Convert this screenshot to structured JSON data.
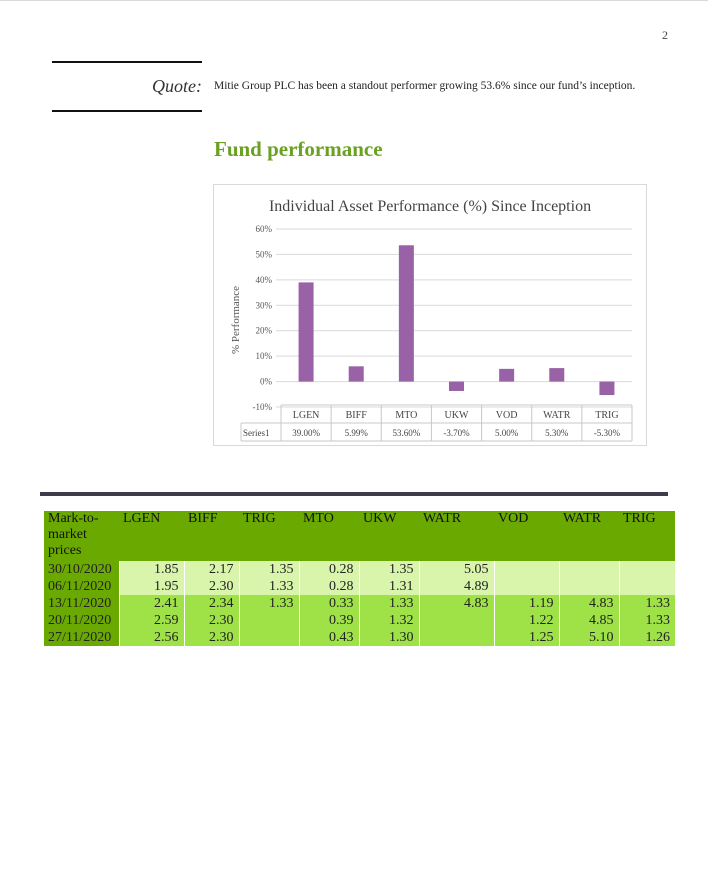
{
  "page_number": "2",
  "quote": {
    "label": "Quote:",
    "text": "Mitie Group PLC has been a standout performer growing 53.6% since our fund’s inception."
  },
  "section_title": "Fund performance",
  "chart_data": {
    "type": "bar",
    "title": "Individual Asset Performance (%) Since Inception",
    "ylabel": "% Performance",
    "xlabel": "",
    "categories": [
      "LGEN",
      "BIFF",
      "MTO",
      "UKW",
      "VOD",
      "WATR",
      "TRIG"
    ],
    "series": [
      {
        "name": "Series1",
        "values": [
          39.0,
          5.99,
          53.6,
          -3.7,
          5.0,
          5.3,
          -5.3
        ],
        "labels": [
          "39.00%",
          "5.99%",
          "53.60%",
          "-3.70%",
          "5.00%",
          "5.30%",
          "-5.30%"
        ],
        "color": "#9a62a6"
      }
    ],
    "yticks": [
      "60%",
      "50%",
      "40%",
      "30%",
      "20%",
      "10%",
      "0%",
      "-10%"
    ],
    "ylim": [
      -10,
      60
    ],
    "grid": true,
    "legend": "data table below axis"
  },
  "table": {
    "headers": [
      "Mark-to-market prices",
      "LGEN",
      "BIFF",
      "TRIG",
      "MTO",
      "UKW",
      "WATR",
      "VOD",
      "WATR",
      "TRIG"
    ],
    "rows": [
      [
        "30/10/2020",
        "1.85",
        "2.17",
        "1.35",
        "0.28",
        "1.35",
        "5.05",
        "",
        "",
        ""
      ],
      [
        "06/11/2020",
        "1.95",
        "2.30",
        "1.33",
        "0.28",
        "1.31",
        "4.89",
        "",
        "",
        ""
      ],
      [
        "13/11/2020",
        "2.41",
        "2.34",
        "1.33",
        "0.33",
        "1.33",
        "4.83",
        "1.19",
        "4.83",
        "1.33"
      ],
      [
        "20/11/2020",
        "2.59",
        "2.30",
        "",
        "0.39",
        "1.32",
        "",
        "1.22",
        "4.85",
        "1.33"
      ],
      [
        "27/11/2020",
        "2.56",
        "2.30",
        "",
        "0.43",
        "1.30",
        "",
        "1.25",
        "5.10",
        "1.26"
      ]
    ]
  },
  "colors": {
    "accent_green": "#6aa121",
    "header_green": "#6aa900",
    "row_light": "#d8f5ab",
    "row_dark": "#9fe247",
    "bar_purple": "#9a62a6"
  }
}
